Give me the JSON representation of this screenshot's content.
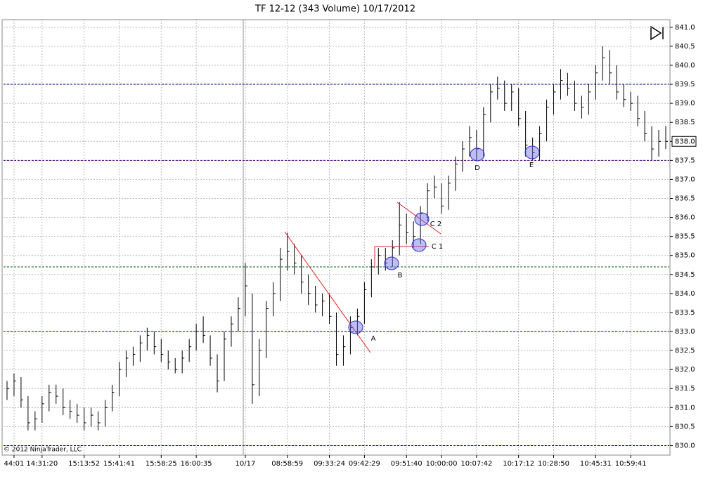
{
  "chart_data": {
    "type": "hlc",
    "title": "TF 12-12 (343 Volume)  10/17/2012",
    "copyright": "© 2012 NinjaTrader, LLC",
    "categories": [
      null,
      "44:01",
      null,
      null,
      null,
      "14:31:20",
      null,
      null,
      null,
      null,
      null,
      "15:13:52",
      null,
      null,
      null,
      null,
      "15:41:41",
      null,
      null,
      null,
      null,
      null,
      "15:58:25",
      null,
      null,
      null,
      null,
      "16:00:35",
      null,
      null,
      null,
      null,
      null,
      null,
      "10/17",
      null,
      null,
      null,
      null,
      null,
      "08:58:59",
      null,
      null,
      null,
      null,
      null,
      "09:33:24",
      null,
      null,
      null,
      null,
      "09:42:29",
      null,
      null,
      null,
      null,
      null,
      "09:51:40",
      null,
      null,
      null,
      null,
      "10:00:00",
      null,
      null,
      null,
      null,
      "10:07:42",
      null,
      null,
      null,
      null,
      null,
      "10:17:12",
      null,
      null,
      null,
      null,
      "10:28:50",
      null,
      null,
      null,
      null,
      null,
      "10:45:31",
      null,
      null,
      null,
      null,
      "10:59:41",
      null,
      null,
      null,
      null,
      null
    ],
    "high": [
      831.7,
      831.9,
      831.8,
      831.3,
      830.9,
      831.3,
      831.6,
      831.6,
      831.5,
      831.2,
      831.1,
      831.0,
      831.0,
      830.9,
      831.2,
      831.6,
      832.2,
      832.5,
      832.6,
      832.9,
      833.1,
      833.0,
      832.8,
      832.5,
      832.3,
      832.5,
      832.8,
      833.2,
      833.4,
      832.9,
      832.4,
      833.0,
      833.4,
      833.9,
      834.8,
      834.0,
      832.8,
      833.8,
      834.3,
      835.2,
      835.6,
      835.3,
      835.0,
      834.5,
      834.2,
      834.0,
      834.0,
      833.5,
      832.9,
      833.4,
      833.6,
      834.3,
      834.9,
      835.2,
      835.2,
      835.4,
      836.4,
      836.1,
      835.9,
      836.3,
      836.9,
      837.1,
      836.9,
      837.1,
      837.6,
      838.0,
      838.4,
      838.3,
      838.9,
      839.5,
      839.7,
      839.6,
      839.5,
      839.4,
      838.8,
      838.1,
      838.4,
      839.1,
      839.5,
      839.9,
      839.8,
      839.6,
      839.2,
      839.5,
      840.0,
      840.5,
      840.4,
      840.0,
      839.5,
      839.3,
      839.2,
      838.8,
      838.4,
      838.3,
      838.4
    ],
    "low": [
      831.2,
      831.3,
      831.0,
      830.4,
      830.4,
      830.6,
      830.9,
      831.1,
      830.8,
      830.7,
      830.6,
      830.4,
      830.5,
      830.4,
      830.5,
      830.9,
      831.3,
      831.8,
      832.1,
      832.2,
      832.5,
      832.4,
      832.2,
      832.0,
      831.9,
      831.9,
      832.2,
      832.5,
      832.7,
      832.1,
      831.4,
      831.7,
      832.6,
      833.0,
      833.4,
      831.1,
      831.3,
      832.3,
      833.4,
      833.8,
      834.6,
      834.5,
      834.0,
      833.7,
      833.5,
      833.4,
      833.2,
      832.1,
      832.1,
      832.4,
      832.9,
      833.2,
      833.9,
      834.5,
      834.6,
      834.7,
      835.0,
      835.3,
      835.2,
      835.3,
      835.9,
      836.5,
      836.1,
      836.2,
      836.7,
      837.2,
      837.6,
      837.5,
      837.6,
      838.5,
      839.1,
      838.8,
      838.8,
      838.4,
      837.6,
      837.5,
      837.5,
      838.0,
      838.7,
      839.1,
      839.2,
      838.8,
      838.6,
      838.7,
      839.1,
      839.6,
      839.5,
      839.1,
      838.9,
      838.8,
      838.4,
      838.0,
      837.5,
      837.6,
      837.8
    ],
    "close": [
      831.5,
      831.7,
      831.2,
      830.6,
      830.7,
      831.1,
      831.4,
      831.3,
      831.0,
      830.9,
      830.8,
      830.6,
      830.8,
      830.6,
      831.0,
      831.4,
      832.0,
      832.3,
      832.4,
      832.7,
      832.9,
      832.6,
      832.4,
      832.2,
      832.0,
      832.3,
      832.6,
      833.0,
      832.9,
      832.3,
      831.7,
      832.8,
      833.2,
      833.6,
      834.2,
      831.6,
      832.5,
      833.6,
      834.0,
      834.9,
      835.1,
      834.8,
      834.3,
      834.0,
      833.7,
      833.8,
      833.4,
      832.4,
      832.6,
      833.1,
      833.4,
      834.1,
      834.7,
      835.0,
      834.8,
      835.2,
      835.8,
      835.6,
      835.5,
      836.1,
      836.7,
      836.8,
      836.3,
      836.9,
      837.4,
      837.8,
      838.1,
      837.8,
      838.7,
      839.3,
      839.4,
      839.0,
      839.3,
      838.6,
      837.9,
      837.7,
      838.2,
      838.9,
      839.3,
      839.6,
      839.4,
      839.0,
      838.9,
      839.3,
      839.8,
      840.2,
      839.8,
      839.3,
      839.1,
      839.0,
      838.6,
      838.2,
      837.8,
      838.0,
      838.0
    ],
    "color": "#000000",
    "ylim": [
      829.75,
      841.2
    ],
    "yticks": [
      {
        "value": 830,
        "label": "830.0"
      },
      830.5,
      {
        "value": 831,
        "label": "831.0"
      },
      831.5,
      {
        "value": 832,
        "label": "832.0"
      },
      832.5,
      {
        "value": 833,
        "label": "833.0"
      },
      833.5,
      {
        "value": 834,
        "label": "834.0"
      },
      834.5,
      {
        "value": 835,
        "label": "835.0"
      },
      835.5,
      {
        "value": 836,
        "label": "836.0"
      },
      836.5,
      {
        "value": 837,
        "label": "837.0"
      },
      837.5,
      {
        "value": 838,
        "label": "838.0"
      },
      838.5,
      {
        "value": 839,
        "label": "839.0"
      },
      839.5,
      {
        "value": 840,
        "label": "840.0"
      },
      840.5,
      {
        "value": 841,
        "label": "841.0"
      }
    ],
    "grid": true,
    "last_price": {
      "value": 838,
      "label": "838.0"
    },
    "levels": [
      {
        "value": 839.5,
        "color": "#00008b"
      },
      {
        "value": 837.5,
        "color": "#4b0082"
      },
      {
        "value": 834.7,
        "color": "#006400"
      },
      {
        "value": 833,
        "color": "#00008b"
      },
      {
        "value": 830,
        "color": "#00008b"
      }
    ],
    "annotations": [
      "A",
      "B",
      "C 1",
      "C 2",
      "D",
      "E"
    ]
  }
}
